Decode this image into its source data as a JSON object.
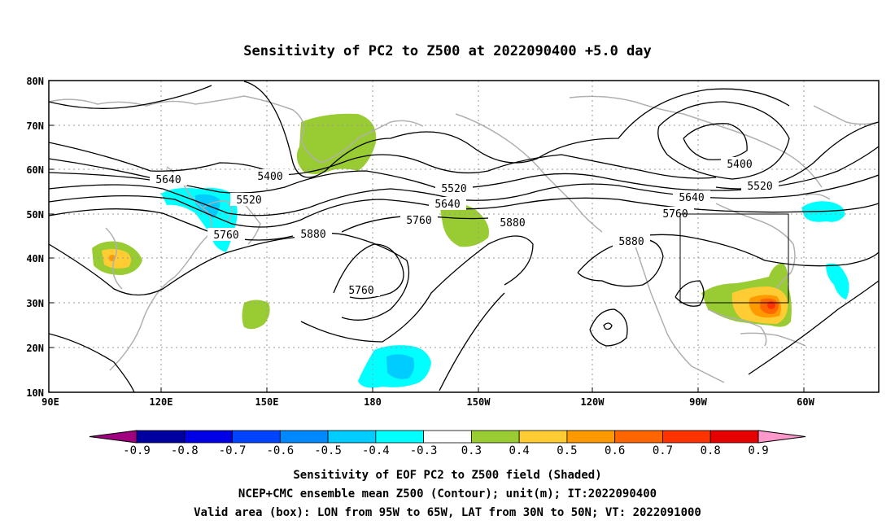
{
  "title": "Sensitivity of PC2 to Z500 at 2022090400 +5.0 day",
  "lat_ticks": [
    "80N",
    "70N",
    "60N",
    "50N",
    "40N",
    "30N",
    "20N",
    "10N"
  ],
  "lon_ticks": [
    "90E",
    "120E",
    "150E",
    "180",
    "150W",
    "120W",
    "90W",
    "60W"
  ],
  "contour_labels": [
    "5400",
    "5400",
    "5520",
    "5520",
    "5520",
    "5640",
    "5640",
    "5640",
    "5760",
    "5760",
    "5760",
    "5760",
    "5880",
    "5880",
    "5880"
  ],
  "colorbar": {
    "labels": [
      "-0.9",
      "-0.8",
      "-0.7",
      "-0.6",
      "-0.5",
      "-0.4",
      "-0.3",
      "0.3",
      "0.4",
      "0.5",
      "0.6",
      "0.7",
      "0.8",
      "0.9"
    ],
    "colors": [
      "#a0007f",
      "#0000a0",
      "#0000e6",
      "#0044ff",
      "#0088ff",
      "#00ccff",
      "#00ffff",
      "#ffffff",
      "#99cc33",
      "#ffcc33",
      "#ff9900",
      "#ff6600",
      "#ff3300",
      "#e60000",
      "#ff99cc"
    ]
  },
  "valid_box": {
    "lon": [
      "95W",
      "65W"
    ],
    "lat": [
      "30N",
      "50N"
    ]
  },
  "footer": {
    "line1": "Sensitivity of EOF PC2 to Z500 field (Shaded)",
    "line2": "NCEP+CMC ensemble mean Z500 (Contour); unit(m); IT:2022090400",
    "line3": "Valid area (box): LON from 95W to 65W, LAT from 30N to 50N; VT: 2022091000"
  }
}
